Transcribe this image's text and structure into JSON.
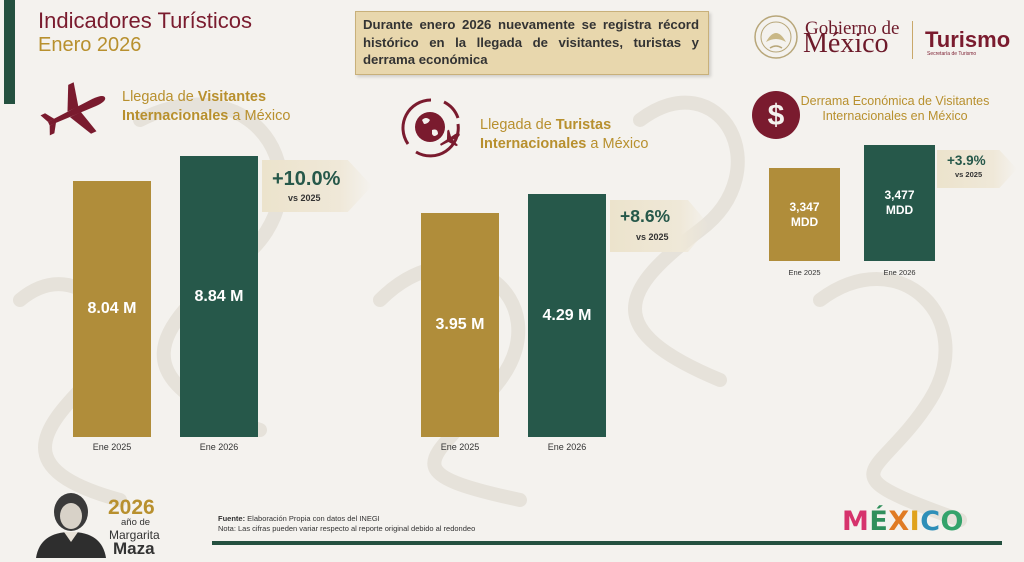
{
  "header": {
    "title_line1": "Indicadores Turísticos",
    "title_line2": "Enero 2026",
    "callout": "Durante enero 2026 nuevamente se registra récord histórico en la llegada de visitantes, turistas y derrama económica"
  },
  "logos": {
    "gob_word": "Gobierno de",
    "gob_country": "México",
    "turismo_word": "Turismo",
    "turismo_sub": "Secretaría de Turismo",
    "mexico_letters": [
      "M",
      "É",
      "X",
      "I",
      "C",
      "O"
    ],
    "mexico_colors": [
      "#d6336c",
      "#2f8f5b",
      "#e07b24",
      "#e0a21c",
      "#2e8fb8",
      "#34a36b"
    ],
    "year_num": "2026",
    "year_sub": "año de",
    "year_name1": "Margarita",
    "year_name2": "Maza"
  },
  "sections": {
    "visitantes": {
      "title_pre": "Llegada de ",
      "title_bold1": "Visitantes",
      "title_bold2": "Internacionales",
      "title_post": " a México",
      "icon": "airplane-icon"
    },
    "turistas": {
      "title_pre": "Llegada de ",
      "title_bold1": "Turistas",
      "title_bold2": "Internacionales",
      "title_post": " a México",
      "icon": "globe-plane-icon"
    },
    "derrama": {
      "title": "Derrama Económica de Visitantes Internacionales en México",
      "icon": "dollar-icon"
    }
  },
  "chart_data": [
    {
      "type": "bar",
      "title": "Llegada de Visitantes Internacionales a México",
      "categories": [
        "Ene 2025",
        "Ene 2026"
      ],
      "values": [
        8.04,
        8.84
      ],
      "value_labels": [
        "8.04 M",
        "8.84 M"
      ],
      "unit": "M",
      "change_label": "+10.0%",
      "change_sub": "vs 2025",
      "colors": [
        "#b08d3a",
        "#26584a"
      ]
    },
    {
      "type": "bar",
      "title": "Llegada de Turistas Internacionales a México",
      "categories": [
        "Ene 2025",
        "Ene 2026"
      ],
      "values": [
        3.95,
        4.29
      ],
      "value_labels": [
        "3.95 M",
        "4.29 M"
      ],
      "unit": "M",
      "change_label": "+8.6%",
      "change_sub": "vs 2025",
      "colors": [
        "#b08d3a",
        "#26584a"
      ]
    },
    {
      "type": "bar",
      "title": "Derrama Económica de Visitantes Internacionales en México",
      "categories": [
        "Ene  2025",
        "Ene 2026"
      ],
      "values": [
        3347,
        3477
      ],
      "value_labels": [
        "3,347",
        "3,477"
      ],
      "value_units": [
        "MDD",
        "MDD"
      ],
      "unit": "MDD",
      "change_label": "+3.9%",
      "change_sub": "vs 2025",
      "colors": [
        "#b08d3a",
        "#26584a"
      ]
    }
  ],
  "footer": {
    "source_label": "Fuente:",
    "source_text": " Elaboración Propia con datos del INEGI",
    "note": "Nota: Las cifras pueden variar respecto al reporte original debido al redondeo"
  }
}
